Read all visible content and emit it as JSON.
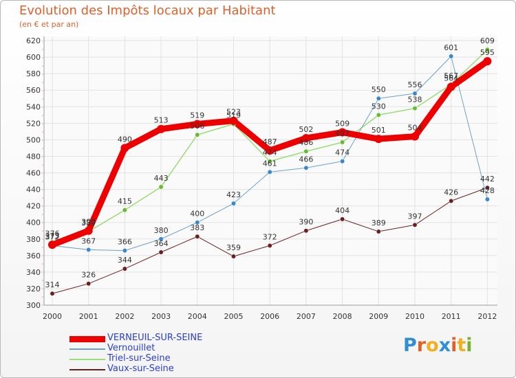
{
  "title": "Evolution des Impôts locaux par Habitant",
  "subtitle": "(en € et par an)",
  "logo": {
    "letters": [
      "P",
      "r",
      "o",
      "x",
      "i",
      "t",
      "i"
    ],
    "colors": [
      "#2f8fd0",
      "#e0602a",
      "#f0b020",
      "#2f8fd0",
      "#e0602a",
      "#f0b020",
      "#7ab030"
    ]
  },
  "chart_data": {
    "type": "line",
    "x": [
      "2000",
      "2001",
      "2002",
      "2003",
      "2004",
      "2005",
      "2006",
      "2007",
      "2008",
      "2009",
      "2010",
      "2011",
      "2012"
    ],
    "yticks": [
      "300",
      "320",
      "340",
      "360",
      "380",
      "400",
      "420",
      "440",
      "460",
      "480",
      "500",
      "520",
      "540",
      "560",
      "580",
      "600",
      "620"
    ],
    "ylim": [
      300,
      620
    ],
    "series": [
      {
        "name": "Vaux-sur-Seine",
        "color": "#6b2020",
        "marker": "#6b2020",
        "width": 1,
        "values": [
          314,
          326,
          344,
          364,
          383,
          359,
          372,
          390,
          404,
          389,
          397,
          426,
          442
        ],
        "labels": [
          "314",
          "326",
          "344",
          "364",
          "383",
          "359",
          "372",
          "390",
          "404",
          "389",
          "397",
          "426",
          "442"
        ]
      },
      {
        "name": "Triel-sur-Seine",
        "color": "#99dd77",
        "marker": "#66bb33",
        "width": 1.5,
        "values": [
          376,
          389,
          415,
          443,
          506,
          519,
          474,
          486,
          497,
          530,
          538,
          567,
          609
        ],
        "labels": [
          "376",
          "389",
          "415",
          "443",
          "506",
          "519",
          "474",
          "486",
          "497",
          "530",
          "538",
          "567",
          "609"
        ]
      },
      {
        "name": "Vernouillet",
        "color": "#6aa0cc",
        "marker": "#3a88cc",
        "width": 1,
        "values": [
          372,
          367,
          366,
          380,
          400,
          423,
          461,
          466,
          474,
          550,
          556,
          601,
          428
        ],
        "labels": [
          "372",
          "367",
          "366",
          "380",
          "400",
          "423",
          "461",
          "466",
          "474",
          "550",
          "556",
          "601",
          "428"
        ]
      },
      {
        "name": "VERNEUIL-SUR-SEINE",
        "color": "#ee0000",
        "marker": "#ee0000",
        "width": 9,
        "values": [
          373,
          390,
          490,
          513,
          519,
          523,
          487,
          502,
          509,
          501,
          504,
          564,
          595
        ],
        "labels": [
          "373",
          "390",
          "490",
          "513",
          "519",
          "523",
          "487",
          "502",
          "509",
          "501",
          "504",
          "564",
          "595"
        ]
      }
    ],
    "legend": [
      "VERNEUIL-SUR-SEINE",
      "Vernouillet",
      "Triel-sur-Seine",
      "Vaux-sur-Seine"
    ]
  },
  "legend_items": [
    {
      "label": "VERNEUIL-SUR-SEINE",
      "color": "#ee0000",
      "text_color": "#2a3fd0",
      "thickness": 9
    },
    {
      "label": "Vernouillet",
      "color": "#6aa0cc",
      "text_color": "#2a3fd0",
      "thickness": 2
    },
    {
      "label": "Triel-sur-Seine",
      "color": "#99dd77",
      "text_color": "#2a3fd0",
      "thickness": 2
    },
    {
      "label": "Vaux-sur-Seine",
      "color": "#6b2020",
      "text_color": "#2a3fd0",
      "thickness": 2
    }
  ]
}
